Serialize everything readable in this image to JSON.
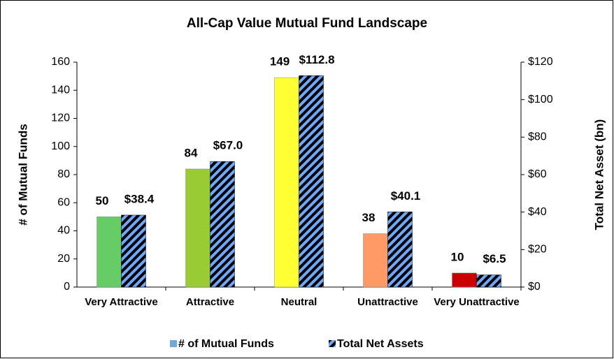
{
  "chart_data": {
    "type": "bar",
    "title": "All-Cap Value Mutual Fund Landscape",
    "categories": [
      "Very Attractive",
      "Attractive",
      "Neutral",
      "Unattractive",
      "Very Unattractive"
    ],
    "series": [
      {
        "name": "# of Mutual Funds",
        "color": "#6fa8dc",
        "colors": [
          "#66cc66",
          "#99cc33",
          "#ffff33",
          "#ff9966",
          "#cc0000"
        ],
        "values": [
          50,
          84,
          149,
          38,
          10
        ]
      },
      {
        "name": "Total Net Assets",
        "color": "#6fa8ff",
        "hatch": true,
        "axis": "y2",
        "values": [
          38.4,
          67.0,
          112.8,
          40.1,
          6.5
        ],
        "value_labels": [
          "$38.4",
          "$67.0",
          "$112.8",
          "$40.1",
          "$6.5"
        ]
      }
    ],
    "ylabel": "# of Mutual Funds",
    "y2label": "Total Net Asset (bn)",
    "ylim": [
      0,
      160
    ],
    "yticks": [
      0,
      20,
      40,
      60,
      80,
      100,
      120,
      140,
      160
    ],
    "y2lim": [
      0,
      120
    ],
    "y2ticks": [
      {
        "value": 0,
        "label": "$0"
      },
      {
        "value": 20,
        "label": "$20"
      },
      {
        "value": 40,
        "label": "$40"
      },
      {
        "value": 60,
        "label": "$60"
      },
      {
        "value": 80,
        "label": "$80"
      },
      {
        "value": 100,
        "label": "$100"
      },
      {
        "value": 120,
        "label": "$120"
      }
    ],
    "legend": "bottom"
  }
}
